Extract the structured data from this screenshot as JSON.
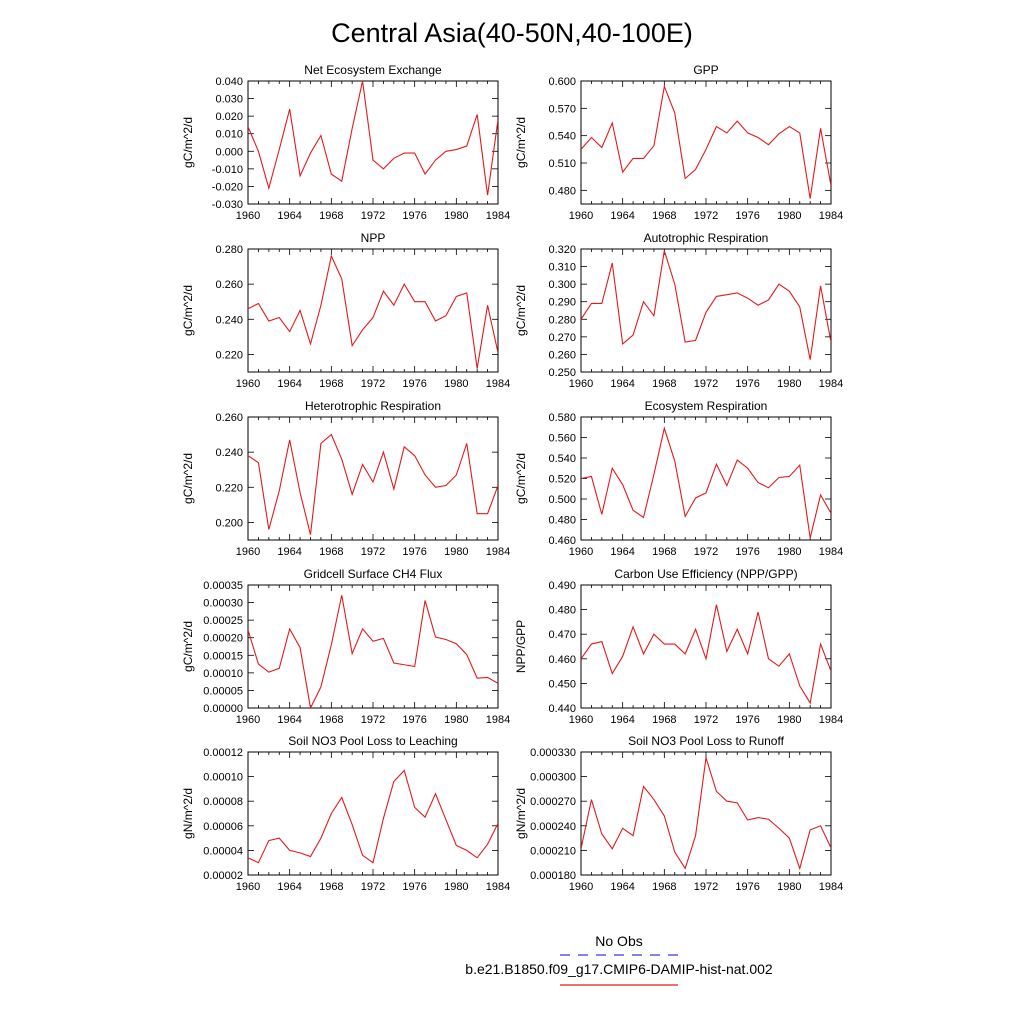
{
  "figure": {
    "title": "Central Asia(40-50N,40-100E)",
    "legend": {
      "obs_label": "No Obs",
      "model_label": "b.e21.B1850.f09_g17.CMIP6-DAMIP-hist-nat.002",
      "obs_color": "#3b3bd6",
      "model_color": "#e31a1c"
    }
  },
  "chart_data": [
    {
      "type": "line",
      "title": "Net Ecosystem Exchange",
      "ylabel": "gC/m^2/d",
      "xlim": [
        1960,
        1984
      ],
      "ylim": [
        -0.03,
        0.04
      ],
      "xticks": [
        "1960",
        "1964",
        "1968",
        "1972",
        "1976",
        "1980",
        "1984"
      ],
      "yticks": [
        "-0.030",
        "-0.020",
        "-0.010",
        "0.000",
        "0.010",
        "0.020",
        "0.030",
        "0.040"
      ],
      "series": [
        {
          "color": "#e31a1c",
          "x": [
            1960,
            1961,
            1962,
            1963,
            1964,
            1965,
            1966,
            1967,
            1968,
            1969,
            1970,
            1971,
            1972,
            1973,
            1974,
            1975,
            1976,
            1977,
            1978,
            1979,
            1980,
            1981,
            1982,
            1983,
            1984
          ],
          "values": [
            0.014,
            0.0,
            -0.021,
            0.001,
            0.024,
            -0.014,
            -0.001,
            0.009,
            -0.013,
            -0.017,
            0.013,
            0.04,
            -0.005,
            -0.01,
            -0.004,
            -0.001,
            -0.001,
            -0.013,
            -0.005,
            0.0,
            0.001,
            0.003,
            0.021,
            -0.025,
            0.018
          ]
        }
      ]
    },
    {
      "type": "line",
      "title": "GPP",
      "ylabel": "gC/m^2/d",
      "xlim": [
        1960,
        1984
      ],
      "ylim": [
        0.465,
        0.6
      ],
      "xticks": [
        "1960",
        "1964",
        "1968",
        "1972",
        "1976",
        "1980",
        "1984"
      ],
      "yticks": [
        "0.480",
        "0.510",
        "0.540",
        "0.570",
        "0.600"
      ],
      "series": [
        {
          "color": "#e31a1c",
          "x": [
            1960,
            1961,
            1962,
            1963,
            1964,
            1965,
            1966,
            1967,
            1968,
            1969,
            1970,
            1971,
            1972,
            1973,
            1974,
            1975,
            1976,
            1977,
            1978,
            1979,
            1980,
            1981,
            1982,
            1983,
            1984
          ],
          "values": [
            0.525,
            0.538,
            0.527,
            0.554,
            0.5,
            0.515,
            0.515,
            0.529,
            0.594,
            0.565,
            0.493,
            0.503,
            0.525,
            0.55,
            0.543,
            0.556,
            0.543,
            0.538,
            0.53,
            0.542,
            0.55,
            0.543,
            0.471,
            0.548,
            0.485
          ]
        }
      ]
    },
    {
      "type": "line",
      "title": "NPP",
      "ylabel": "gC/m^2/d",
      "xlim": [
        1960,
        1984
      ],
      "ylim": [
        0.21,
        0.28
      ],
      "xticks": [
        "1960",
        "1964",
        "1968",
        "1972",
        "1976",
        "1980",
        "1984"
      ],
      "yticks": [
        "0.220",
        "0.240",
        "0.260",
        "0.280"
      ],
      "series": [
        {
          "color": "#e31a1c",
          "x": [
            1960,
            1961,
            1962,
            1963,
            1964,
            1965,
            1966,
            1967,
            1968,
            1969,
            1970,
            1971,
            1972,
            1973,
            1974,
            1975,
            1976,
            1977,
            1978,
            1979,
            1980,
            1981,
            1982,
            1983,
            1984
          ],
          "values": [
            0.246,
            0.249,
            0.239,
            0.241,
            0.233,
            0.245,
            0.226,
            0.248,
            0.276,
            0.263,
            0.225,
            0.234,
            0.241,
            0.256,
            0.248,
            0.26,
            0.25,
            0.25,
            0.239,
            0.242,
            0.253,
            0.255,
            0.212,
            0.248,
            0.221
          ]
        }
      ]
    },
    {
      "type": "line",
      "title": "Autotrophic Respiration",
      "ylabel": "gC/m^2/d",
      "xlim": [
        1960,
        1984
      ],
      "ylim": [
        0.25,
        0.32
      ],
      "xticks": [
        "1960",
        "1964",
        "1968",
        "1972",
        "1976",
        "1980",
        "1984"
      ],
      "yticks": [
        "0.250",
        "0.260",
        "0.270",
        "0.280",
        "0.290",
        "0.300",
        "0.310",
        "0.320"
      ],
      "series": [
        {
          "color": "#e31a1c",
          "x": [
            1960,
            1961,
            1962,
            1963,
            1964,
            1965,
            1966,
            1967,
            1968,
            1969,
            1970,
            1971,
            1972,
            1973,
            1974,
            1975,
            1976,
            1977,
            1978,
            1979,
            1980,
            1981,
            1982,
            1983,
            1984
          ],
          "values": [
            0.28,
            0.289,
            0.289,
            0.312,
            0.266,
            0.271,
            0.29,
            0.282,
            0.319,
            0.3,
            0.267,
            0.268,
            0.284,
            0.293,
            0.294,
            0.295,
            0.292,
            0.288,
            0.291,
            0.3,
            0.296,
            0.287,
            0.257,
            0.299,
            0.267
          ]
        }
      ]
    },
    {
      "type": "line",
      "title": "Heterotrophic Respiration",
      "ylabel": "gC/m^2/d",
      "xlim": [
        1960,
        1984
      ],
      "ylim": [
        0.19,
        0.26
      ],
      "xticks": [
        "1960",
        "1964",
        "1968",
        "1972",
        "1976",
        "1980",
        "1984"
      ],
      "yticks": [
        "0.200",
        "0.220",
        "0.240",
        "0.260"
      ],
      "series": [
        {
          "color": "#e31a1c",
          "x": [
            1960,
            1961,
            1962,
            1963,
            1964,
            1965,
            1966,
            1967,
            1968,
            1969,
            1970,
            1971,
            1972,
            1973,
            1974,
            1975,
            1976,
            1977,
            1978,
            1979,
            1980,
            1981,
            1982,
            1983,
            1984
          ],
          "values": [
            0.238,
            0.234,
            0.196,
            0.218,
            0.247,
            0.217,
            0.193,
            0.245,
            0.25,
            0.236,
            0.216,
            0.233,
            0.223,
            0.24,
            0.219,
            0.243,
            0.238,
            0.227,
            0.22,
            0.221,
            0.227,
            0.245,
            0.205,
            0.205,
            0.221
          ]
        }
      ]
    },
    {
      "type": "line",
      "title": "Ecosystem Respiration",
      "ylabel": "gC/m^2/d",
      "xlim": [
        1960,
        1984
      ],
      "ylim": [
        0.46,
        0.58
      ],
      "xticks": [
        "1960",
        "1964",
        "1968",
        "1972",
        "1976",
        "1980",
        "1984"
      ],
      "yticks": [
        "0.460",
        "0.480",
        "0.500",
        "0.520",
        "0.540",
        "0.560",
        "0.580"
      ],
      "series": [
        {
          "color": "#e31a1c",
          "x": [
            1960,
            1961,
            1962,
            1963,
            1964,
            1965,
            1966,
            1967,
            1968,
            1969,
            1970,
            1971,
            1972,
            1973,
            1974,
            1975,
            1976,
            1977,
            1978,
            1979,
            1980,
            1981,
            1982,
            1983,
            1984
          ],
          "values": [
            0.52,
            0.522,
            0.485,
            0.53,
            0.514,
            0.489,
            0.482,
            0.524,
            0.569,
            0.537,
            0.483,
            0.501,
            0.506,
            0.534,
            0.513,
            0.538,
            0.53,
            0.516,
            0.511,
            0.521,
            0.522,
            0.533,
            0.462,
            0.504,
            0.486
          ]
        }
      ]
    },
    {
      "type": "line",
      "title": "Gridcell Surface CH4 Flux",
      "ylabel": "gC/m^2/d",
      "xlim": [
        1960,
        1984
      ],
      "ylim": [
        0,
        0.00035
      ],
      "xticks": [
        "1960",
        "1964",
        "1968",
        "1972",
        "1976",
        "1980",
        "1984"
      ],
      "yticks": [
        "0.00000",
        "0.00005",
        "0.00010",
        "0.00015",
        "0.00020",
        "0.00025",
        "0.00030",
        "0.00035"
      ],
      "series": [
        {
          "color": "#e31a1c",
          "x": [
            1960,
            1961,
            1962,
            1963,
            1964,
            1965,
            1966,
            1967,
            1968,
            1969,
            1970,
            1971,
            1972,
            1973,
            1974,
            1975,
            1976,
            1977,
            1978,
            1979,
            1980,
            1981,
            1982,
            1983,
            1984
          ],
          "values": [
            0.000222,
            0.000125,
            0.000102,
            0.000113,
            0.000225,
            0.000172,
            0.0,
            6e-05,
            0.00018,
            0.000321,
            0.000155,
            0.000225,
            0.00019,
            0.000198,
            0.000128,
            0.000123,
            0.000118,
            0.000306,
            0.000202,
            0.000195,
            0.000183,
            0.000152,
            8.5e-05,
            8.7e-05,
            7e-05
          ]
        }
      ]
    },
    {
      "type": "line",
      "title": "Carbon Use Efficiency (NPP/GPP)",
      "ylabel": "NPP/GPP",
      "xlim": [
        1960,
        1984
      ],
      "ylim": [
        0.44,
        0.49
      ],
      "xticks": [
        "1960",
        "1964",
        "1968",
        "1972",
        "1976",
        "1980",
        "1984"
      ],
      "yticks": [
        "0.440",
        "0.450",
        "0.460",
        "0.470",
        "0.480",
        "0.490"
      ],
      "series": [
        {
          "color": "#e31a1c",
          "x": [
            1960,
            1961,
            1962,
            1963,
            1964,
            1965,
            1966,
            1967,
            1968,
            1969,
            1970,
            1971,
            1972,
            1973,
            1974,
            1975,
            1976,
            1977,
            1978,
            1979,
            1980,
            1981,
            1982,
            1983,
            1984
          ],
          "values": [
            0.46,
            0.466,
            0.467,
            0.454,
            0.461,
            0.473,
            0.462,
            0.47,
            0.466,
            0.466,
            0.462,
            0.472,
            0.46,
            0.482,
            0.463,
            0.472,
            0.462,
            0.479,
            0.46,
            0.457,
            0.462,
            0.449,
            0.442,
            0.466,
            0.455
          ]
        }
      ]
    },
    {
      "type": "line",
      "title": "Soil NO3 Pool Loss to Leaching",
      "ylabel": "gN/m^2/d",
      "xlim": [
        1960,
        1984
      ],
      "ylim": [
        2e-05,
        0.00012
      ],
      "xticks": [
        "1960",
        "1964",
        "1968",
        "1972",
        "1976",
        "1980",
        "1984"
      ],
      "yticks": [
        "0.00002",
        "0.00004",
        "0.00006",
        "0.00008",
        "0.00010",
        "0.00012"
      ],
      "series": [
        {
          "color": "#e31a1c",
          "x": [
            1960,
            1961,
            1962,
            1963,
            1964,
            1965,
            1966,
            1967,
            1968,
            1969,
            1970,
            1971,
            1972,
            1973,
            1974,
            1975,
            1976,
            1977,
            1978,
            1979,
            1980,
            1981,
            1982,
            1983,
            1984
          ],
          "values": [
            3.4e-05,
            3e-05,
            4.8e-05,
            5e-05,
            4e-05,
            3.8e-05,
            3.5e-05,
            5e-05,
            7e-05,
            8.3e-05,
            6.1e-05,
            3.6e-05,
            3e-05,
            6.6e-05,
            9.6e-05,
            0.000105,
            7.5e-05,
            6.7e-05,
            8.6e-05,
            6.5e-05,
            4.4e-05,
            4e-05,
            3.4e-05,
            4.5e-05,
            6.2e-05
          ]
        }
      ]
    },
    {
      "type": "line",
      "title": "Soil NO3 Pool Loss to Runoff",
      "ylabel": "gN/m^2/d",
      "xlim": [
        1960,
        1984
      ],
      "ylim": [
        0.00018,
        0.00033
      ],
      "xticks": [
        "1960",
        "1964",
        "1968",
        "1972",
        "1976",
        "1980",
        "1984"
      ],
      "yticks": [
        "0.000180",
        "0.000210",
        "0.000240",
        "0.000270",
        "0.000300",
        "0.000330"
      ],
      "series": [
        {
          "color": "#e31a1c",
          "x": [
            1960,
            1961,
            1962,
            1963,
            1964,
            1965,
            1966,
            1967,
            1968,
            1969,
            1970,
            1971,
            1972,
            1973,
            1974,
            1975,
            1976,
            1977,
            1978,
            1979,
            1980,
            1981,
            1982,
            1983,
            1984
          ],
          "values": [
            0.000212,
            0.000272,
            0.00023,
            0.000212,
            0.000237,
            0.000228,
            0.000288,
            0.000272,
            0.000252,
            0.000208,
            0.000188,
            0.000228,
            0.000323,
            0.000282,
            0.00027,
            0.000268,
            0.000247,
            0.00025,
            0.000248,
            0.000237,
            0.000225,
            0.000188,
            0.000235,
            0.00024,
            0.000213
          ]
        }
      ]
    }
  ]
}
